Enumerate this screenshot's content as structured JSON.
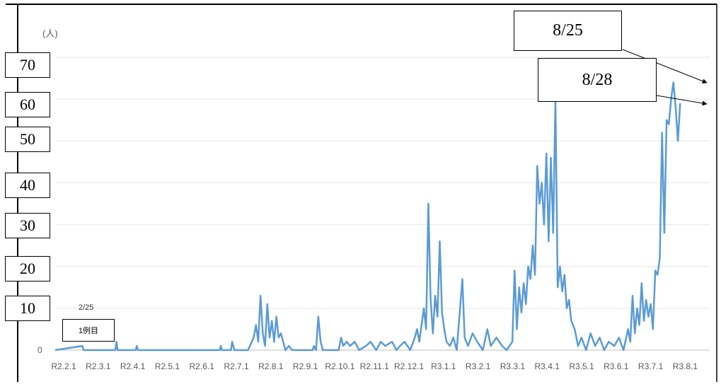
{
  "chart_data": {
    "type": "line",
    "unit_label": "(人)",
    "y_tick_labels": [
      "70",
      "60",
      "50",
      "40",
      "30",
      "20",
      "10"
    ],
    "y_zero_label": "0",
    "ylim": [
      0,
      70
    ],
    "x_tick_labels": [
      "R2.2.1",
      "R2.3.1",
      "R2.4.1",
      "R2.5.1",
      "R2.6.1",
      "R2.7.1",
      "R2.8.1",
      "R2.9.1",
      "R2.10.1",
      "R2.11.1",
      "R2.12.1",
      "R3.1.1",
      "R3.2.1",
      "R3.3.1",
      "R3.4.1",
      "R3.5.1",
      "R3.6.1",
      "R3.7.1",
      "R3.8.1"
    ],
    "x_start": "2020-02-01",
    "x_end": "2021-08-31",
    "line_color": "#5b9bd5",
    "grid": true,
    "series": [
      {
        "points": [
          [
            "2020-02-25",
            1
          ],
          [
            "2020-02-26",
            0
          ],
          [
            "2020-03-25",
            0
          ],
          [
            "2020-03-26",
            2
          ],
          [
            "2020-03-27",
            0
          ],
          [
            "2020-04-12",
            0
          ],
          [
            "2020-04-13",
            1
          ],
          [
            "2020-04-14",
            0
          ],
          [
            "2020-06-25",
            0
          ],
          [
            "2020-06-26",
            1
          ],
          [
            "2020-06-27",
            0
          ],
          [
            "2020-07-05",
            0
          ],
          [
            "2020-07-06",
            2
          ],
          [
            "2020-07-08",
            0
          ],
          [
            "2020-07-20",
            0
          ],
          [
            "2020-07-25",
            3
          ],
          [
            "2020-07-27",
            6
          ],
          [
            "2020-07-29",
            2
          ],
          [
            "2020-07-31",
            13
          ],
          [
            "2020-08-02",
            4
          ],
          [
            "2020-08-04",
            1
          ],
          [
            "2020-08-06",
            11
          ],
          [
            "2020-08-08",
            3
          ],
          [
            "2020-08-10",
            7
          ],
          [
            "2020-08-12",
            2
          ],
          [
            "2020-08-14",
            8
          ],
          [
            "2020-08-16",
            3
          ],
          [
            "2020-08-18",
            4
          ],
          [
            "2020-08-20",
            2
          ],
          [
            "2020-08-22",
            0
          ],
          [
            "2020-08-25",
            1
          ],
          [
            "2020-08-28",
            0
          ],
          [
            "2020-09-15",
            0
          ],
          [
            "2020-09-16",
            1
          ],
          [
            "2020-09-18",
            0
          ],
          [
            "2020-09-20",
            8
          ],
          [
            "2020-09-22",
            2
          ],
          [
            "2020-09-24",
            0
          ],
          [
            "2020-10-08",
            0
          ],
          [
            "2020-10-10",
            3
          ],
          [
            "2020-10-12",
            1
          ],
          [
            "2020-10-15",
            2
          ],
          [
            "2020-10-18",
            1
          ],
          [
            "2020-10-22",
            2
          ],
          [
            "2020-10-26",
            0
          ],
          [
            "2020-11-01",
            1
          ],
          [
            "2020-11-05",
            2
          ],
          [
            "2020-11-10",
            0
          ],
          [
            "2020-11-14",
            2
          ],
          [
            "2020-11-18",
            1
          ],
          [
            "2020-11-24",
            2
          ],
          [
            "2020-11-28",
            0
          ],
          [
            "2020-12-01",
            1
          ],
          [
            "2020-12-05",
            2
          ],
          [
            "2020-12-10",
            0
          ],
          [
            "2020-12-14",
            3
          ],
          [
            "2020-12-16",
            5
          ],
          [
            "2020-12-18",
            2
          ],
          [
            "2020-12-20",
            6
          ],
          [
            "2020-12-22",
            10
          ],
          [
            "2020-12-24",
            5
          ],
          [
            "2020-12-26",
            35
          ],
          [
            "2020-12-28",
            12
          ],
          [
            "2020-12-30",
            4
          ],
          [
            "2021-01-01",
            13
          ],
          [
            "2021-01-03",
            8
          ],
          [
            "2021-01-05",
            26
          ],
          [
            "2021-01-07",
            9
          ],
          [
            "2021-01-09",
            5
          ],
          [
            "2021-01-11",
            2
          ],
          [
            "2021-01-14",
            1
          ],
          [
            "2021-01-17",
            3
          ],
          [
            "2021-01-20",
            0
          ],
          [
            "2021-01-25",
            17
          ],
          [
            "2021-01-27",
            3
          ],
          [
            "2021-01-30",
            1
          ],
          [
            "2021-02-03",
            4
          ],
          [
            "2021-02-07",
            2
          ],
          [
            "2021-02-12",
            0
          ],
          [
            "2021-02-16",
            5
          ],
          [
            "2021-02-19",
            1
          ],
          [
            "2021-02-24",
            3
          ],
          [
            "2021-03-01",
            1
          ],
          [
            "2021-03-05",
            0
          ],
          [
            "2021-03-10",
            2
          ],
          [
            "2021-03-12",
            19
          ],
          [
            "2021-03-14",
            5
          ],
          [
            "2021-03-16",
            15
          ],
          [
            "2021-03-18",
            9
          ],
          [
            "2021-03-20",
            16
          ],
          [
            "2021-03-22",
            11
          ],
          [
            "2021-03-24",
            20
          ],
          [
            "2021-03-26",
            17
          ],
          [
            "2021-03-28",
            25
          ],
          [
            "2021-03-30",
            18
          ],
          [
            "2021-04-01",
            44
          ],
          [
            "2021-04-03",
            35
          ],
          [
            "2021-04-05",
            40
          ],
          [
            "2021-04-07",
            30
          ],
          [
            "2021-04-09",
            47
          ],
          [
            "2021-04-11",
            26
          ],
          [
            "2021-04-13",
            46
          ],
          [
            "2021-04-15",
            28
          ],
          [
            "2021-04-17",
            60
          ],
          [
            "2021-04-19",
            15
          ],
          [
            "2021-04-21",
            20
          ],
          [
            "2021-04-23",
            14
          ],
          [
            "2021-04-25",
            18
          ],
          [
            "2021-04-27",
            10
          ],
          [
            "2021-04-29",
            12
          ],
          [
            "2021-05-01",
            7
          ],
          [
            "2021-05-04",
            5
          ],
          [
            "2021-05-07",
            1
          ],
          [
            "2021-05-10",
            3
          ],
          [
            "2021-05-14",
            0
          ],
          [
            "2021-05-18",
            4
          ],
          [
            "2021-05-22",
            1
          ],
          [
            "2021-05-26",
            3
          ],
          [
            "2021-05-30",
            0
          ],
          [
            "2021-06-03",
            2
          ],
          [
            "2021-06-08",
            1
          ],
          [
            "2021-06-12",
            3
          ],
          [
            "2021-06-16",
            0
          ],
          [
            "2021-06-20",
            5
          ],
          [
            "2021-06-22",
            2
          ],
          [
            "2021-06-24",
            13
          ],
          [
            "2021-06-26",
            4
          ],
          [
            "2021-06-28",
            10
          ],
          [
            "2021-06-30",
            6
          ],
          [
            "2021-07-02",
            16
          ],
          [
            "2021-07-04",
            7
          ],
          [
            "2021-07-06",
            12
          ],
          [
            "2021-07-08",
            8
          ],
          [
            "2021-07-10",
            11
          ],
          [
            "2021-07-12",
            5
          ],
          [
            "2021-07-14",
            19
          ],
          [
            "2021-07-16",
            18
          ],
          [
            "2021-07-18",
            22
          ],
          [
            "2021-07-20",
            52
          ],
          [
            "2021-07-22",
            28
          ],
          [
            "2021-07-24",
            55
          ],
          [
            "2021-07-26",
            54
          ],
          [
            "2021-07-28",
            60
          ],
          [
            "2021-07-30",
            64
          ],
          [
            "2021-08-01",
            58
          ],
          [
            "2021-08-03",
            50
          ],
          [
            "2021-08-05",
            59
          ]
        ]
      }
    ],
    "annotations": {
      "first_date": "2/25",
      "first_label": "1例目",
      "callouts": [
        "8/25",
        "8/28"
      ]
    }
  }
}
